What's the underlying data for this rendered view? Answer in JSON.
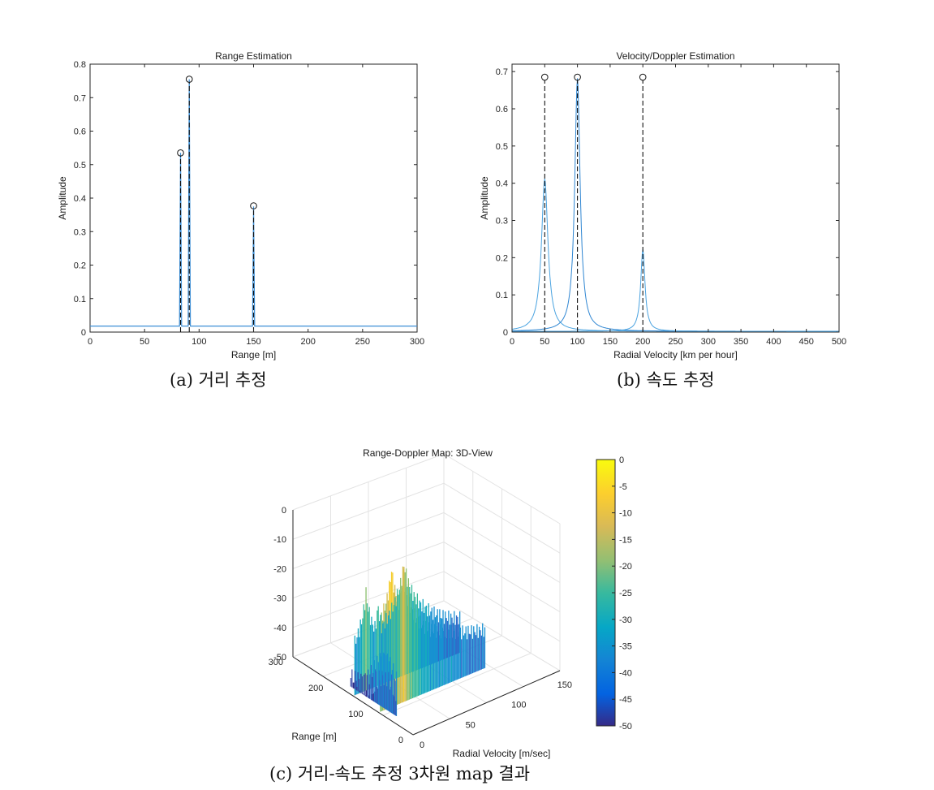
{
  "captions": {
    "a": "(a) 거리 추정",
    "b": "(b) 속도 추정",
    "c": "(c) 거리-속도 추정 3차원 map 결과"
  },
  "colors": {
    "series": "#3d8fd6",
    "stem": "#111111",
    "axis": "#262626",
    "grid": "#e3e3e3"
  },
  "chart_data": [
    {
      "type": "line",
      "title": "Range Estimation",
      "xlabel": "Range [m]",
      "ylabel": "Amplitude",
      "xlim": [
        0,
        300
      ],
      "ylim": [
        0,
        0.8
      ],
      "xticks": [
        0,
        50,
        100,
        150,
        200,
        250,
        300
      ],
      "yticks": [
        0,
        0.1,
        0.2,
        0.3,
        0.4,
        0.5,
        0.6,
        0.7,
        0.8
      ],
      "ytick_labels": [
        "0",
        "0.1",
        "0.2",
        "0.3",
        "0.4",
        "0.5",
        "0.6",
        "0.7",
        "0.8"
      ],
      "baseline": 0.018,
      "peaks": [
        {
          "x": 83,
          "y": 0.535
        },
        {
          "x": 91,
          "y": 0.755
        },
        {
          "x": 150,
          "y": 0.375
        }
      ],
      "markers": [
        {
          "x": 83,
          "y": 0.535
        },
        {
          "x": 91,
          "y": 0.755
        },
        {
          "x": 150,
          "y": 0.377
        }
      ]
    },
    {
      "type": "line",
      "title": "Velocity/Doppler Estimation",
      "xlabel": "Radial Velocity [km per hour]",
      "ylabel": "Amplitude",
      "xlim": [
        0,
        500
      ],
      "ylim": [
        0,
        0.72
      ],
      "xticks": [
        0,
        50,
        100,
        150,
        200,
        250,
        300,
        350,
        400,
        450,
        500
      ],
      "yticks": [
        0,
        0.1,
        0.2,
        0.3,
        0.4,
        0.5,
        0.6,
        0.7
      ],
      "ytick_labels": [
        "0",
        "0.1",
        "0.2",
        "0.3",
        "0.4",
        "0.5",
        "0.6",
        "0.7"
      ],
      "peaks": [
        {
          "x": 50,
          "y": 0.41
        },
        {
          "x": 100,
          "y": 0.68
        },
        {
          "x": 200,
          "y": 0.22
        }
      ],
      "markers": [
        {
          "x": 50,
          "y": 0.685
        },
        {
          "x": 100,
          "y": 0.685
        },
        {
          "x": 200,
          "y": 0.685
        }
      ]
    },
    {
      "type": "surface",
      "title": "Range-Doppler Map: 3D-View",
      "xlabel": "Radial Velocity [m/sec]",
      "ylabel": "Range [m]",
      "z_ticks": [
        0,
        -10,
        -20,
        -30,
        -40,
        -50
      ],
      "velocity_ticks": [
        0,
        50,
        100,
        150
      ],
      "range_ticks": [
        0,
        100,
        200,
        300
      ],
      "colorbar_ticks": [
        0,
        -5,
        -10,
        -15,
        -20,
        -25,
        -30,
        -35,
        -40,
        -45,
        -50
      ],
      "clim": [
        -50,
        0
      ]
    }
  ]
}
